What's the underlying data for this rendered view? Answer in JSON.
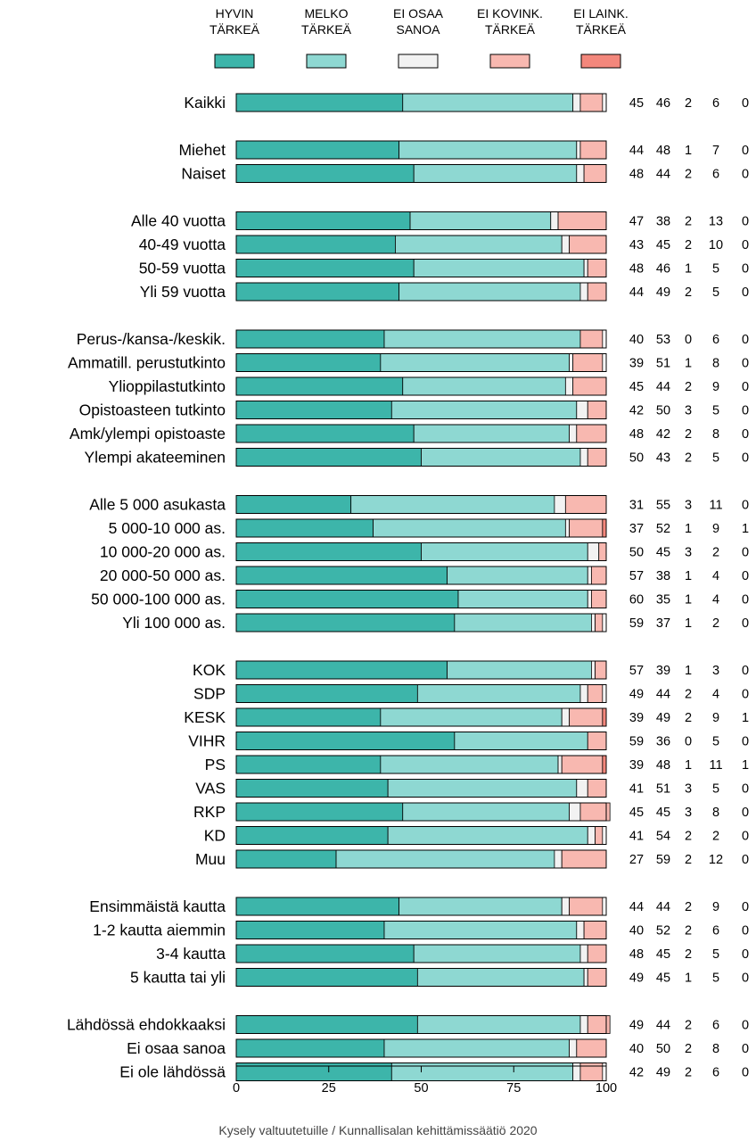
{
  "chart_data": {
    "type": "bar",
    "orientation": "horizontal",
    "stacked": true,
    "xlim": [
      0,
      100
    ],
    "xticks": [
      "0",
      "25",
      "50",
      "75",
      "100"
    ],
    "legend_position": "top",
    "series": [
      {
        "name_lines": [
          "HYVIN",
          "TÄRKEÄ"
        ],
        "color": "#3db5aa"
      },
      {
        "name_lines": [
          "MELKO",
          "TÄRKEÄ"
        ],
        "color": "#8ed8d2"
      },
      {
        "name_lines": [
          "EI OSAA",
          "SANOA"
        ],
        "color": "#f2f2f2"
      },
      {
        "name_lines": [
          "EI KOVINK.",
          "TÄRKEÄ"
        ],
        "color": "#f8b8b0"
      },
      {
        "name_lines": [
          "EI LAINK.",
          "TÄRKEÄ"
        ],
        "color": "#f3877c"
      }
    ],
    "groups": [
      {
        "rows": [
          {
            "label": "Kaikki",
            "values": [
              45,
              46,
              2,
              6,
              0
            ]
          }
        ]
      },
      {
        "rows": [
          {
            "label": "Miehet",
            "values": [
              44,
              48,
              1,
              7,
              0
            ]
          },
          {
            "label": "Naiset",
            "values": [
              48,
              44,
              2,
              6,
              0
            ]
          }
        ]
      },
      {
        "rows": [
          {
            "label": "Alle 40 vuotta",
            "values": [
              47,
              38,
              2,
              13,
              0
            ]
          },
          {
            "label": "40-49 vuotta",
            "values": [
              43,
              45,
              2,
              10,
              0
            ]
          },
          {
            "label": "50-59 vuotta",
            "values": [
              48,
              46,
              1,
              5,
              0
            ]
          },
          {
            "label": "Yli 59 vuotta",
            "values": [
              44,
              49,
              2,
              5,
              0
            ]
          }
        ]
      },
      {
        "rows": [
          {
            "label": "Perus-/kansa-/keskik.",
            "values": [
              40,
              53,
              0,
              6,
              0
            ]
          },
          {
            "label": "Ammatill. perustutkinto",
            "values": [
              39,
              51,
              1,
              8,
              0
            ]
          },
          {
            "label": "Ylioppilastutkinto",
            "values": [
              45,
              44,
              2,
              9,
              0
            ]
          },
          {
            "label": "Opistoasteen tutkinto",
            "values": [
              42,
              50,
              3,
              5,
              0
            ]
          },
          {
            "label": "Amk/ylempi opistoaste",
            "values": [
              48,
              42,
              2,
              8,
              0
            ]
          },
          {
            "label": "Ylempi akateeminen",
            "values": [
              50,
              43,
              2,
              5,
              0
            ]
          }
        ]
      },
      {
        "rows": [
          {
            "label": "Alle 5 000 asukasta",
            "values": [
              31,
              55,
              3,
              11,
              0
            ]
          },
          {
            "label": "5 000-10 000 as.",
            "values": [
              37,
              52,
              1,
              9,
              1
            ]
          },
          {
            "label": "10 000-20 000 as.",
            "values": [
              50,
              45,
              3,
              2,
              0
            ]
          },
          {
            "label": "20 000-50 000 as.",
            "values": [
              57,
              38,
              1,
              4,
              0
            ]
          },
          {
            "label": "50 000-100 000 as.",
            "values": [
              60,
              35,
              1,
              4,
              0
            ]
          },
          {
            "label": "Yli 100 000 as.",
            "values": [
              59,
              37,
              1,
              2,
              0
            ]
          }
        ]
      },
      {
        "rows": [
          {
            "label": "KOK",
            "values": [
              57,
              39,
              1,
              3,
              0
            ]
          },
          {
            "label": "SDP",
            "values": [
              49,
              44,
              2,
              4,
              0
            ]
          },
          {
            "label": "KESK",
            "values": [
              39,
              49,
              2,
              9,
              1
            ]
          },
          {
            "label": "VIHR",
            "values": [
              59,
              36,
              0,
              5,
              0
            ]
          },
          {
            "label": "PS",
            "values": [
              39,
              48,
              1,
              11,
              1
            ]
          },
          {
            "label": "VAS",
            "values": [
              41,
              51,
              3,
              5,
              0
            ]
          },
          {
            "label": "RKP",
            "values": [
              45,
              45,
              3,
              8,
              0
            ]
          },
          {
            "label": "KD",
            "values": [
              41,
              54,
              2,
              2,
              0
            ]
          },
          {
            "label": "Muu",
            "values": [
              27,
              59,
              2,
              12,
              0
            ]
          }
        ]
      },
      {
        "rows": [
          {
            "label": "Ensimmäistä kautta",
            "values": [
              44,
              44,
              2,
              9,
              0
            ]
          },
          {
            "label": "1-2 kautta aiemmin",
            "values": [
              40,
              52,
              2,
              6,
              0
            ]
          },
          {
            "label": "3-4 kautta",
            "values": [
              48,
              45,
              2,
              5,
              0
            ]
          },
          {
            "label": "5 kautta tai yli",
            "values": [
              49,
              45,
              1,
              5,
              0
            ]
          }
        ]
      },
      {
        "rows": [
          {
            "label": "Lähdössä ehdokkaaksi",
            "values": [
              49,
              44,
              2,
              6,
              0
            ]
          },
          {
            "label": "Ei osaa sanoa",
            "values": [
              40,
              50,
              2,
              8,
              0
            ]
          },
          {
            "label": "Ei ole lähdössä",
            "values": [
              42,
              49,
              2,
              6,
              0
            ]
          }
        ]
      }
    ],
    "caption": "Kysely valtuutetuille / Kunnallisalan kehittämissäätiö 2020"
  }
}
